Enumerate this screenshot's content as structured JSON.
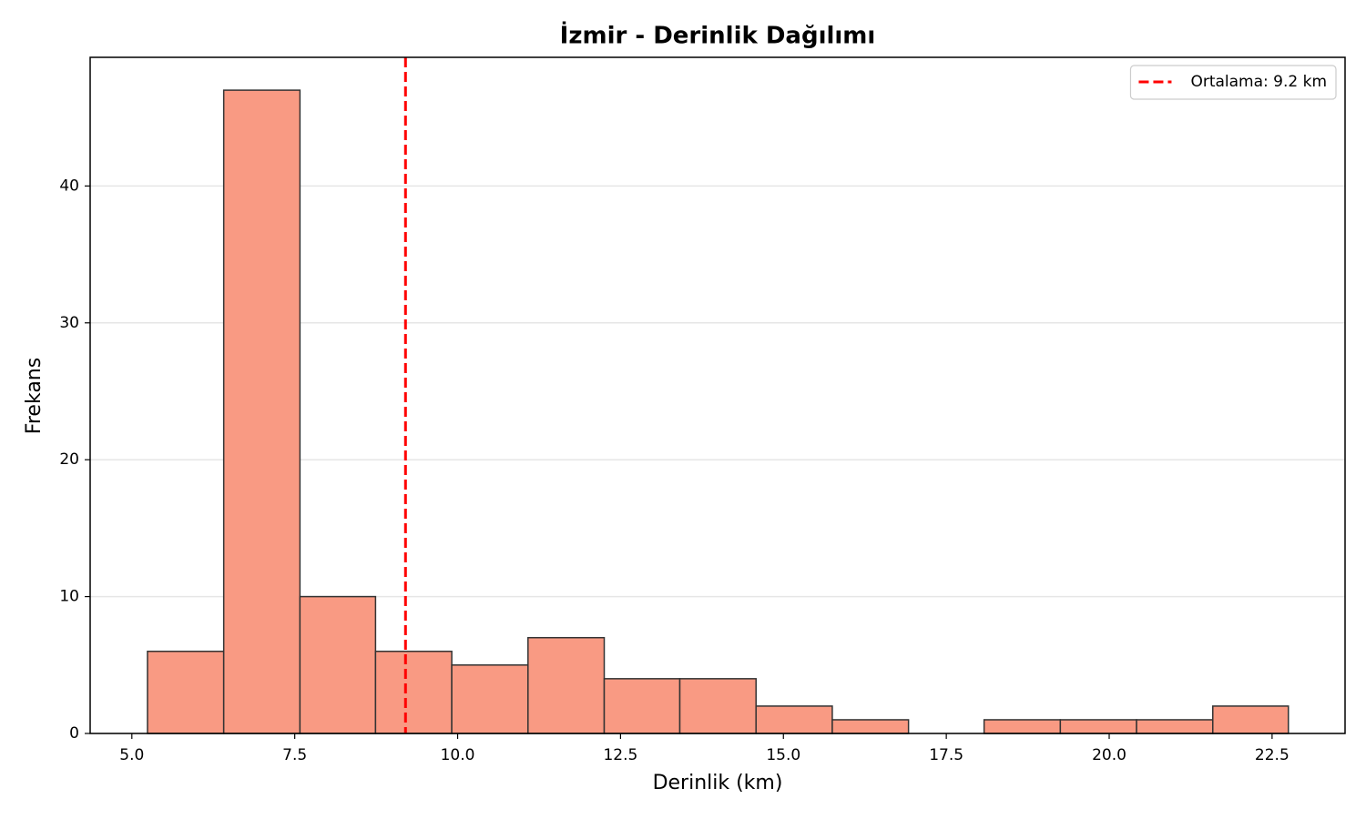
{
  "chart_data": {
    "type": "histogram",
    "title": "İzmir - Derinlik Dağılımı",
    "x_label": "Derinlik (km)",
    "y_label": "Frekans",
    "bins": [
      5.24,
      6.41,
      7.58,
      8.74,
      9.91,
      11.08,
      12.25,
      13.41,
      14.58,
      15.75,
      16.92,
      18.08,
      19.25,
      20.42,
      21.59,
      22.75
    ],
    "values": [
      6,
      47,
      10,
      6,
      5,
      7,
      4,
      4,
      2,
      1,
      0,
      1,
      1,
      1,
      2
    ],
    "color": "#f99a83",
    "edge_color": "#333333",
    "xlim": [
      4.36,
      23.62
    ],
    "ylim": [
      0,
      49.4
    ],
    "xticks": [
      {
        "value": 5,
        "label": "5.0"
      },
      {
        "value": 7.5,
        "label": "7.5"
      },
      {
        "value": 10,
        "label": "10.0"
      },
      {
        "value": 12.5,
        "label": "12.5"
      },
      {
        "value": 15,
        "label": "15.0"
      },
      {
        "value": 17.5,
        "label": "17.5"
      },
      {
        "value": 20,
        "label": "20.0"
      },
      {
        "value": 22.5,
        "label": "22.5"
      }
    ],
    "yticks": [
      0,
      10,
      20,
      30,
      40
    ],
    "grid": true,
    "mean_line": {
      "value": 9.2,
      "label": "Ortalama: 9.2 km",
      "color": "#ff0000"
    },
    "legend": "upper right"
  }
}
